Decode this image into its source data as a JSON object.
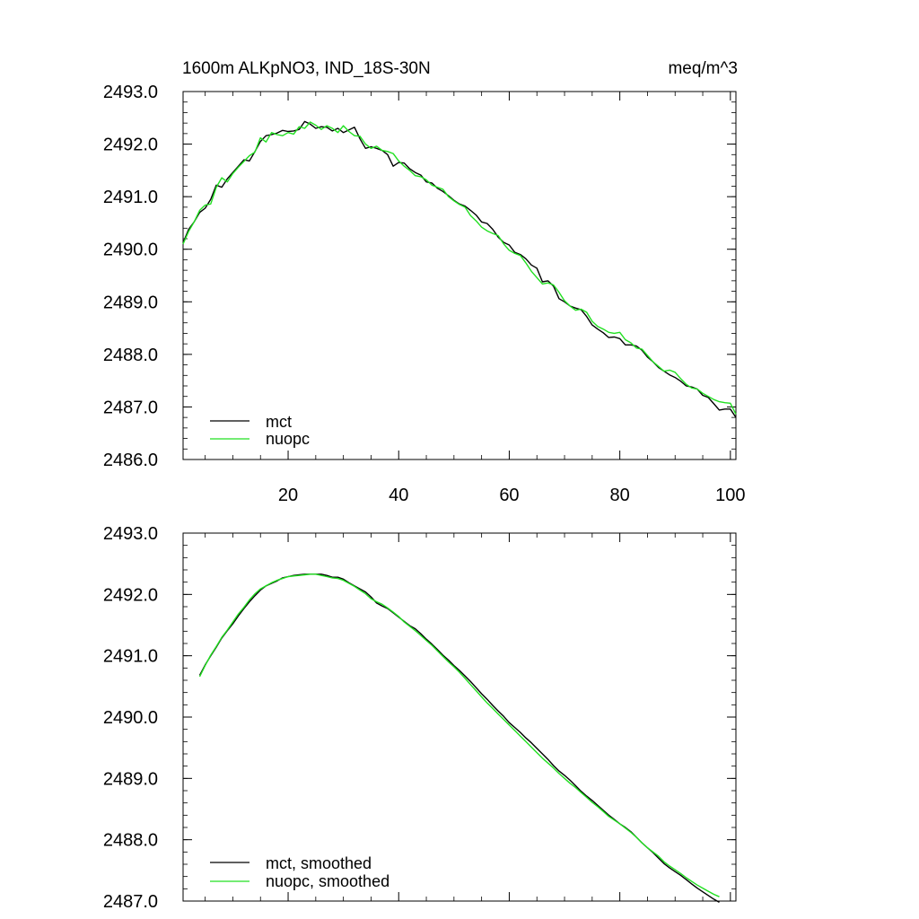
{
  "chart_data": [
    {
      "type": "line",
      "title": "1600m ALKpNO3, IND_18S-30N",
      "units": "meq/m^3",
      "xlabel": "",
      "ylabel": "",
      "xlim": [
        1,
        101
      ],
      "ylim": [
        2486.0,
        2493.0
      ],
      "x_ticks": [
        20,
        40,
        60,
        80,
        100
      ],
      "y_ticks": [
        2486.0,
        2487.0,
        2488.0,
        2489.0,
        2490.0,
        2491.0,
        2492.0,
        2493.0
      ],
      "y_tick_labels": [
        "2486.0",
        "2487.0",
        "2488.0",
        "2489.0",
        "2490.0",
        "2491.0",
        "2492.0",
        "2493.0"
      ],
      "x_tick_labels": [
        "20",
        "40",
        "60",
        "80",
        "100"
      ],
      "legend_position": "bottom-left",
      "series": [
        {
          "name": "mct",
          "color": "#000000",
          "x": [
            1,
            2,
            3,
            4,
            5,
            6,
            7,
            8,
            9,
            10,
            11,
            12,
            13,
            14,
            15,
            16,
            17,
            18,
            19,
            20,
            21,
            22,
            23,
            24,
            25,
            26,
            27,
            28,
            29,
            30,
            31,
            32,
            33,
            34,
            35,
            36,
            37,
            38,
            39,
            40,
            41,
            42,
            43,
            44,
            45,
            46,
            47,
            48,
            49,
            50,
            51,
            52,
            53,
            54,
            55,
            56,
            57,
            58,
            59,
            60,
            61,
            62,
            63,
            64,
            65,
            66,
            67,
            68,
            69,
            70,
            71,
            72,
            73,
            74,
            75,
            76,
            77,
            78,
            79,
            80,
            81,
            82,
            83,
            84,
            85,
            86,
            87,
            88,
            89,
            90,
            91,
            92,
            93,
            94,
            95,
            96,
            97,
            98,
            99,
            100,
            101
          ],
          "values": [
            2490.12,
            2490.38,
            2490.52,
            2490.7,
            2490.78,
            2490.95,
            2491.22,
            2491.18,
            2491.34,
            2491.46,
            2491.58,
            2491.7,
            2491.68,
            2491.86,
            2492.05,
            2492.16,
            2492.18,
            2492.21,
            2492.26,
            2492.24,
            2492.25,
            2492.28,
            2492.43,
            2492.38,
            2492.3,
            2492.33,
            2492.32,
            2492.25,
            2492.3,
            2492.22,
            2492.27,
            2492.32,
            2492.1,
            2491.92,
            2491.95,
            2491.92,
            2491.88,
            2491.8,
            2491.58,
            2491.65,
            2491.64,
            2491.53,
            2491.46,
            2491.41,
            2491.28,
            2491.26,
            2491.16,
            2491.1,
            2491.02,
            2490.93,
            2490.86,
            2490.82,
            2490.74,
            2490.65,
            2490.52,
            2490.49,
            2490.38,
            2490.23,
            2490.13,
            2490.08,
            2489.94,
            2489.9,
            2489.82,
            2489.7,
            2489.64,
            2489.38,
            2489.4,
            2489.3,
            2489.06,
            2489.0,
            2488.92,
            2488.88,
            2488.85,
            2488.72,
            2488.56,
            2488.48,
            2488.41,
            2488.32,
            2488.33,
            2488.3,
            2488.18,
            2488.18,
            2488.16,
            2488.08,
            2487.95,
            2487.86,
            2487.75,
            2487.68,
            2487.61,
            2487.56,
            2487.49,
            2487.4,
            2487.38,
            2487.34,
            2487.22,
            2487.18,
            2487.06,
            2486.94,
            2486.96,
            2486.96,
            2486.8
          ]
        },
        {
          "name": "nuopc",
          "color": "#20e020",
          "x": [
            1,
            2,
            3,
            4,
            5,
            6,
            7,
            8,
            9,
            10,
            11,
            12,
            13,
            14,
            15,
            16,
            17,
            18,
            19,
            20,
            21,
            22,
            23,
            24,
            25,
            26,
            27,
            28,
            29,
            30,
            31,
            32,
            33,
            34,
            35,
            36,
            37,
            38,
            39,
            40,
            41,
            42,
            43,
            44,
            45,
            46,
            47,
            48,
            49,
            50,
            51,
            52,
            53,
            54,
            55,
            56,
            57,
            58,
            59,
            60,
            61,
            62,
            63,
            64,
            65,
            66,
            67,
            68,
            69,
            70,
            71,
            72,
            73,
            74,
            75,
            76,
            77,
            78,
            79,
            80,
            81,
            82,
            83,
            84,
            85,
            86,
            87,
            88,
            89,
            90,
            91,
            92,
            93,
            94,
            95,
            96,
            97,
            98,
            99,
            100,
            101
          ],
          "values": [
            2490.1,
            2490.34,
            2490.52,
            2490.74,
            2490.84,
            2490.86,
            2491.18,
            2491.36,
            2491.28,
            2491.44,
            2491.56,
            2491.67,
            2491.78,
            2491.85,
            2492.12,
            2492.04,
            2492.22,
            2492.18,
            2492.16,
            2492.22,
            2492.19,
            2492.33,
            2492.3,
            2492.42,
            2492.36,
            2492.28,
            2492.35,
            2492.3,
            2492.22,
            2492.35,
            2492.24,
            2492.16,
            2492.15,
            2492.0,
            2491.92,
            2491.96,
            2491.88,
            2491.86,
            2491.82,
            2491.68,
            2491.58,
            2491.5,
            2491.4,
            2491.38,
            2491.32,
            2491.22,
            2491.18,
            2491.14,
            2491.0,
            2490.92,
            2490.85,
            2490.8,
            2490.64,
            2490.54,
            2490.42,
            2490.35,
            2490.3,
            2490.26,
            2490.1,
            2489.98,
            2489.92,
            2489.88,
            2489.74,
            2489.58,
            2489.46,
            2489.34,
            2489.36,
            2489.32,
            2489.18,
            2489.02,
            2488.92,
            2488.84,
            2488.86,
            2488.8,
            2488.63,
            2488.53,
            2488.48,
            2488.42,
            2488.4,
            2488.42,
            2488.28,
            2488.22,
            2488.12,
            2488.1,
            2487.98,
            2487.86,
            2487.77,
            2487.68,
            2487.7,
            2487.66,
            2487.54,
            2487.43,
            2487.36,
            2487.34,
            2487.26,
            2487.2,
            2487.14,
            2487.1,
            2487.08,
            2487.07,
            2486.86
          ]
        }
      ]
    },
    {
      "type": "line",
      "title": "",
      "xlabel": "",
      "ylabel": "",
      "xlim": [
        1,
        101
      ],
      "ylim": [
        2487.0,
        2493.0
      ],
      "x_ticks": [
        20,
        40,
        60,
        80,
        100
      ],
      "y_ticks": [
        2487.0,
        2488.0,
        2489.0,
        2490.0,
        2491.0,
        2492.0,
        2493.0
      ],
      "y_tick_labels": [
        "2487.0",
        "2488.0",
        "2489.0",
        "2490.0",
        "2491.0",
        "2492.0",
        "2493.0"
      ],
      "legend_position": "bottom-left",
      "series": [
        {
          "name": "mct, smoothed",
          "color": "#000000",
          "x": [
            4,
            5,
            6,
            7,
            8,
            9,
            10,
            11,
            12,
            13,
            14,
            15,
            16,
            17,
            18,
            19,
            20,
            21,
            22,
            23,
            24,
            25,
            26,
            27,
            28,
            29,
            30,
            31,
            32,
            33,
            34,
            35,
            36,
            37,
            38,
            39,
            40,
            41,
            42,
            43,
            44,
            45,
            46,
            47,
            48,
            49,
            50,
            51,
            52,
            53,
            54,
            55,
            56,
            57,
            58,
            59,
            60,
            61,
            62,
            63,
            64,
            65,
            66,
            67,
            68,
            69,
            70,
            71,
            72,
            73,
            74,
            75,
            76,
            77,
            78,
            79,
            80,
            81,
            82,
            83,
            84,
            85,
            86,
            87,
            88,
            89,
            90,
            91,
            92,
            93,
            94,
            95,
            96,
            97,
            98
          ],
          "values": [
            2490.68,
            2490.85,
            2491.0,
            2491.14,
            2491.29,
            2491.41,
            2491.52,
            2491.65,
            2491.77,
            2491.88,
            2491.98,
            2492.07,
            2492.14,
            2492.18,
            2492.22,
            2492.27,
            2492.29,
            2492.31,
            2492.32,
            2492.33,
            2492.33,
            2492.33,
            2492.33,
            2492.31,
            2492.28,
            2492.28,
            2492.25,
            2492.19,
            2492.14,
            2492.09,
            2492.04,
            2491.96,
            2491.86,
            2491.81,
            2491.77,
            2491.7,
            2491.63,
            2491.56,
            2491.49,
            2491.44,
            2491.36,
            2491.27,
            2491.19,
            2491.1,
            2491.01,
            2490.93,
            2490.84,
            2490.76,
            2490.67,
            2490.58,
            2490.48,
            2490.38,
            2490.29,
            2490.19,
            2490.1,
            2490.01,
            2489.91,
            2489.83,
            2489.75,
            2489.66,
            2489.58,
            2489.49,
            2489.4,
            2489.31,
            2489.21,
            2489.12,
            2489.05,
            2488.97,
            2488.88,
            2488.79,
            2488.71,
            2488.64,
            2488.56,
            2488.48,
            2488.4,
            2488.33,
            2488.26,
            2488.2,
            2488.13,
            2488.04,
            2487.95,
            2487.87,
            2487.79,
            2487.7,
            2487.61,
            2487.54,
            2487.48,
            2487.42,
            2487.35,
            2487.28,
            2487.21,
            2487.15,
            2487.09,
            2487.03,
            2486.98
          ]
        },
        {
          "name": "nuopc, smoothed",
          "color": "#20e020",
          "x": [
            4,
            5,
            6,
            7,
            8,
            9,
            10,
            11,
            12,
            13,
            14,
            15,
            16,
            17,
            18,
            19,
            20,
            21,
            22,
            23,
            24,
            25,
            26,
            27,
            28,
            29,
            30,
            31,
            32,
            33,
            34,
            35,
            36,
            37,
            38,
            39,
            40,
            41,
            42,
            43,
            44,
            45,
            46,
            47,
            48,
            49,
            50,
            51,
            52,
            53,
            54,
            55,
            56,
            57,
            58,
            59,
            60,
            61,
            62,
            63,
            64,
            65,
            66,
            67,
            68,
            69,
            70,
            71,
            72,
            73,
            74,
            75,
            76,
            77,
            78,
            79,
            80,
            81,
            82,
            83,
            84,
            85,
            86,
            87,
            88,
            89,
            90,
            91,
            92,
            93,
            94,
            95,
            96,
            97,
            98
          ],
          "values": [
            2490.66,
            2490.84,
            2491.01,
            2491.15,
            2491.3,
            2491.42,
            2491.55,
            2491.68,
            2491.79,
            2491.91,
            2492.01,
            2492.09,
            2492.14,
            2492.19,
            2492.23,
            2492.26,
            2492.29,
            2492.3,
            2492.31,
            2492.32,
            2492.33,
            2492.33,
            2492.31,
            2492.29,
            2492.27,
            2492.26,
            2492.23,
            2492.18,
            2492.13,
            2492.07,
            2492.01,
            2491.93,
            2491.88,
            2491.84,
            2491.78,
            2491.71,
            2491.64,
            2491.55,
            2491.48,
            2491.41,
            2491.33,
            2491.25,
            2491.17,
            2491.08,
            2490.99,
            2490.9,
            2490.82,
            2490.73,
            2490.63,
            2490.53,
            2490.43,
            2490.33,
            2490.23,
            2490.14,
            2490.05,
            2489.96,
            2489.87,
            2489.78,
            2489.69,
            2489.6,
            2489.51,
            2489.42,
            2489.33,
            2489.25,
            2489.17,
            2489.08,
            2489.0,
            2488.92,
            2488.85,
            2488.77,
            2488.69,
            2488.61,
            2488.54,
            2488.46,
            2488.38,
            2488.32,
            2488.26,
            2488.19,
            2488.12,
            2488.04,
            2487.95,
            2487.87,
            2487.8,
            2487.73,
            2487.64,
            2487.57,
            2487.51,
            2487.45,
            2487.38,
            2487.32,
            2487.26,
            2487.21,
            2487.16,
            2487.11,
            2487.07
          ]
        }
      ]
    }
  ]
}
